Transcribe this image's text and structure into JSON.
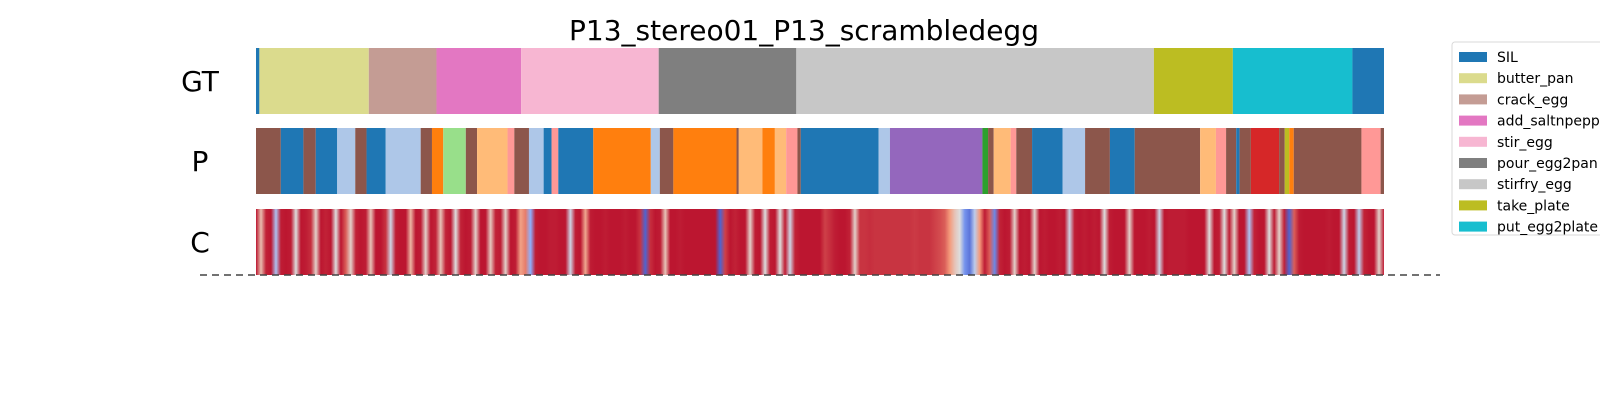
{
  "chart_data": {
    "type": "heatmap",
    "title": "P13_stereo01_P13_scrambledegg",
    "rows": [
      {
        "label": "GT",
        "kind": "segments",
        "segments": [
          {
            "start": 0,
            "end": 0.3,
            "label": "SIL"
          },
          {
            "start": 0.3,
            "end": 10.0,
            "label": "butter_pan"
          },
          {
            "start": 10.0,
            "end": 16.0,
            "label": "crack_egg"
          },
          {
            "start": 16.0,
            "end": 23.5,
            "label": "add_saltnpepper"
          },
          {
            "start": 23.5,
            "end": 35.7,
            "label": "stir_egg"
          },
          {
            "start": 35.7,
            "end": 47.9,
            "label": "pour_egg2pan"
          },
          {
            "start": 47.9,
            "end": 79.6,
            "label": "stirfry_egg"
          },
          {
            "start": 79.6,
            "end": 86.6,
            "label": "take_plate"
          },
          {
            "start": 86.6,
            "end": 97.2,
            "label": "put_egg2plate"
          },
          {
            "start": 97.2,
            "end": 100,
            "label": "SIL"
          }
        ]
      },
      {
        "label": "P",
        "kind": "segments",
        "segments": [
          {
            "start": 0,
            "end": 2.2,
            "color": "#8c564b"
          },
          {
            "start": 2.2,
            "end": 4.2,
            "color": "#1f77b4"
          },
          {
            "start": 4.2,
            "end": 5.3,
            "color": "#8c564b"
          },
          {
            "start": 5.3,
            "end": 7.2,
            "color": "#1f77b4"
          },
          {
            "start": 7.2,
            "end": 8.8,
            "color": "#aec7e8"
          },
          {
            "start": 8.8,
            "end": 9.8,
            "color": "#8c564b"
          },
          {
            "start": 9.8,
            "end": 11.5,
            "color": "#1f77b4"
          },
          {
            "start": 11.5,
            "end": 14.6,
            "color": "#aec7e8"
          },
          {
            "start": 14.6,
            "end": 15.6,
            "color": "#8c564b"
          },
          {
            "start": 15.6,
            "end": 16.6,
            "color": "#ff7f0e"
          },
          {
            "start": 16.6,
            "end": 18.6,
            "color": "#98df8a"
          },
          {
            "start": 18.6,
            "end": 19.6,
            "color": "#8c564b"
          },
          {
            "start": 19.6,
            "end": 22.3,
            "color": "#ffbb78"
          },
          {
            "start": 22.3,
            "end": 22.9,
            "color": "#ff9896"
          },
          {
            "start": 22.9,
            "end": 24.2,
            "color": "#8c564b"
          },
          {
            "start": 24.2,
            "end": 25.5,
            "color": "#aec7e8"
          },
          {
            "start": 25.5,
            "end": 26.2,
            "color": "#1f77b4"
          },
          {
            "start": 26.2,
            "end": 26.8,
            "color": "#ff9896"
          },
          {
            "start": 26.8,
            "end": 29.9,
            "color": "#1f77b4"
          },
          {
            "start": 29.9,
            "end": 35.0,
            "color": "#ff7f0e"
          },
          {
            "start": 35.0,
            "end": 35.8,
            "color": "#aec7e8"
          },
          {
            "start": 35.8,
            "end": 37.0,
            "color": "#8c564b"
          },
          {
            "start": 37.0,
            "end": 42.6,
            "color": "#ff7f0e"
          },
          {
            "start": 42.6,
            "end": 42.8,
            "color": "#8c564b"
          },
          {
            "start": 42.8,
            "end": 44.9,
            "color": "#ffbb78"
          },
          {
            "start": 44.9,
            "end": 46.0,
            "color": "#ff7f0e"
          },
          {
            "start": 46.0,
            "end": 47.0,
            "color": "#ffbb78"
          },
          {
            "start": 47.0,
            "end": 48.0,
            "color": "#ff9896"
          },
          {
            "start": 48.0,
            "end": 48.3,
            "color": "#8c564b"
          },
          {
            "start": 48.3,
            "end": 55.2,
            "color": "#1f77b4"
          },
          {
            "start": 55.2,
            "end": 56.2,
            "color": "#aec7e8"
          },
          {
            "start": 56.2,
            "end": 64.4,
            "color": "#9467bd"
          },
          {
            "start": 64.4,
            "end": 64.9,
            "color": "#2ca02c"
          },
          {
            "start": 64.9,
            "end": 65.4,
            "color": "#8c564b"
          },
          {
            "start": 65.4,
            "end": 66.9,
            "color": "#ffbb78"
          },
          {
            "start": 66.9,
            "end": 67.4,
            "color": "#ff9896"
          },
          {
            "start": 67.4,
            "end": 68.8,
            "color": "#8c564b"
          },
          {
            "start": 68.8,
            "end": 71.5,
            "color": "#1f77b4"
          },
          {
            "start": 71.5,
            "end": 73.5,
            "color": "#aec7e8"
          },
          {
            "start": 73.5,
            "end": 75.7,
            "color": "#8c564b"
          },
          {
            "start": 75.7,
            "end": 77.9,
            "color": "#1f77b4"
          },
          {
            "start": 77.9,
            "end": 83.7,
            "color": "#8c564b"
          },
          {
            "start": 83.7,
            "end": 85.1,
            "color": "#ffbb78"
          },
          {
            "start": 85.1,
            "end": 86.0,
            "color": "#ff9896"
          },
          {
            "start": 86.0,
            "end": 86.9,
            "color": "#8c564b"
          },
          {
            "start": 86.9,
            "end": 87.2,
            "color": "#1f77b4"
          },
          {
            "start": 87.2,
            "end": 88.2,
            "color": "#8c564b"
          },
          {
            "start": 88.2,
            "end": 90.7,
            "color": "#d62728"
          },
          {
            "start": 90.7,
            "end": 91.2,
            "color": "#8c564b"
          },
          {
            "start": 91.2,
            "end": 91.6,
            "color": "#bcbd22"
          },
          {
            "start": 91.6,
            "end": 92.0,
            "color": "#ff7f0e"
          },
          {
            "start": 92.0,
            "end": 98.0,
            "color": "#8c564b"
          },
          {
            "start": 98.0,
            "end": 99.7,
            "color": "#ff9896"
          },
          {
            "start": 99.7,
            "end": 100,
            "color": "#8c564b"
          }
        ]
      },
      {
        "label": "C",
        "kind": "confidence",
        "colormap": "coolwarm",
        "values": [
          0.97,
          0.62,
          0.95,
          0.97,
          0.35,
          0.96,
          0.97,
          0.96,
          0.5,
          0.97,
          0.96,
          0.93,
          0.55,
          0.97,
          0.95,
          0.97,
          0.5,
          0.97,
          0.85,
          0.55,
          0.95,
          0.97,
          0.96,
          0.6,
          0.97,
          0.97,
          0.92,
          0.45,
          0.96,
          0.97,
          0.97,
          0.65,
          0.97,
          0.96,
          0.55,
          0.97,
          0.95,
          0.6,
          0.95,
          0.97,
          0.5,
          0.95,
          0.97,
          0.96,
          0.55,
          0.97,
          0.97,
          0.58,
          0.95,
          0.96,
          0.55,
          0.97,
          0.96,
          0.72,
          0.8,
          0.25,
          0.96,
          0.97,
          0.97,
          0.96,
          0.96,
          0.97,
          0.97,
          0.45,
          0.96,
          0.97,
          0.7,
          0.96,
          0.97,
          0.97,
          0.96,
          0.97,
          0.97,
          0.97,
          0.96,
          0.97,
          0.97,
          0.92,
          0.06,
          0.93,
          0.97,
          0.96,
          0.6,
          0.97,
          0.97,
          0.96,
          0.97,
          0.97,
          0.97,
          0.97,
          0.97,
          0.97,
          0.97,
          0.06,
          0.9,
          0.97,
          0.95,
          0.97,
          0.97,
          0.55,
          0.96,
          0.97,
          0.5,
          0.96,
          0.97,
          0.5,
          0.96,
          0.45,
          0.95,
          0.97,
          0.97,
          0.97,
          0.97,
          0.97,
          0.9,
          0.93,
          0.96,
          0.97,
          0.97,
          0.95,
          0.55,
          0.92,
          0.92,
          0.93,
          0.92,
          0.92,
          0.92,
          0.92,
          0.92,
          0.92,
          0.92,
          0.92,
          0.91,
          0.92,
          0.92,
          0.92,
          0.9,
          0.88,
          0.85,
          0.75,
          0.6,
          0.5,
          0.18,
          0.1,
          0.4,
          0.75,
          0.96,
          0.85,
          0.15,
          0.95,
          0.97,
          0.96,
          0.55,
          0.97,
          0.96,
          0.97,
          0.55,
          0.97,
          0.96,
          0.97,
          0.97,
          0.96,
          0.97,
          0.45,
          0.96,
          0.97,
          0.96,
          0.97,
          0.96,
          0.97,
          0.5,
          0.96,
          0.97,
          0.97,
          0.97,
          0.55,
          0.97,
          0.97,
          0.97,
          0.96,
          0.97,
          0.45,
          0.97,
          0.96,
          0.96,
          0.96,
          0.96,
          0.97,
          0.97,
          0.97,
          0.97,
          0.5,
          0.97,
          0.96,
          0.5,
          0.96,
          0.55,
          0.97,
          0.97,
          0.35,
          0.95,
          0.97,
          0.97,
          0.5,
          0.96,
          0.55,
          0.95,
          0.06,
          0.85,
          0.96,
          0.97,
          0.97,
          0.97,
          0.97,
          0.97,
          0.96,
          0.97,
          0.97,
          0.45,
          0.96,
          0.97,
          0.4,
          0.95,
          0.97,
          0.97,
          0.55,
          0.96
        ]
      }
    ],
    "legend": [
      {
        "label": "SIL",
        "color": "#1f77b4"
      },
      {
        "label": "butter_pan",
        "color": "#dbdb8d"
      },
      {
        "label": "crack_egg",
        "color": "#c49c94"
      },
      {
        "label": "add_saltnpepper",
        "color": "#e377c2"
      },
      {
        "label": "stir_egg",
        "color": "#f7b6d2"
      },
      {
        "label": "pour_egg2pan",
        "color": "#7f7f7f"
      },
      {
        "label": "stirfry_egg",
        "color": "#c7c7c7"
      },
      {
        "label": "take_plate",
        "color": "#bcbd22"
      },
      {
        "label": "put_egg2plate",
        "color": "#17becf"
      }
    ],
    "legend_position": "top-right, partially cut off",
    "grid": false
  }
}
